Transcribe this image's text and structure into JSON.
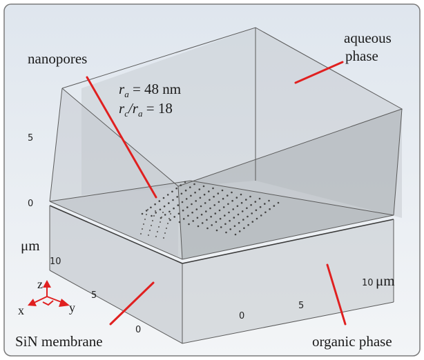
{
  "labels": {
    "nanopores": "nanopores",
    "aqueous_line1": "aqueous",
    "aqueous_line2": "phase",
    "membrane": "SiN membrane",
    "organic": "organic phase"
  },
  "params": {
    "ra_symbol": "r",
    "ra_sub": "a",
    "ra_value": " = 48 nm",
    "ratio_num": "r",
    "ratio_num_sub": "c",
    "ratio_slash": "/r",
    "ratio_den_sub": "a",
    "ratio_value": " = 18"
  },
  "axes": {
    "z_ticks": [
      "5",
      "0"
    ],
    "unit_left": "μm",
    "left_ticks": [
      "10",
      "5",
      "0"
    ],
    "right_ticks": [
      "0",
      "5",
      "10"
    ],
    "unit_right": "μm"
  },
  "triad": {
    "x": "x",
    "y": "y",
    "z": "z"
  },
  "colors": {
    "leader_line": "#e02020",
    "triad": "#e02020",
    "box_edge": "#5a5a5a",
    "pore_dot": "#444444"
  }
}
